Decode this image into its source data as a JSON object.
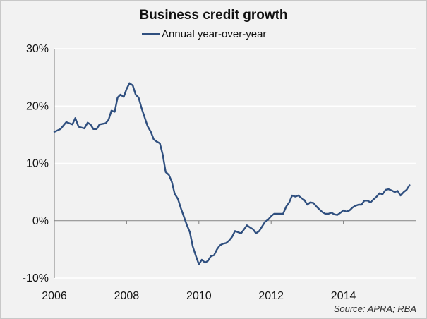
{
  "chart_data": {
    "type": "line",
    "title": "Business credit growth",
    "legend": [
      "Annual year-over-year"
    ],
    "y_tick_labels": [
      "30%",
      "20%",
      "10%",
      "0%",
      "-10%"
    ],
    "y_ticks": [
      30,
      20,
      10,
      0,
      -10
    ],
    "x_tick_labels": [
      "2006",
      "2008",
      "2010",
      "2012",
      "2014"
    ],
    "x_ticks": [
      2006,
      2008,
      2010,
      2012,
      2014
    ],
    "xlim": [
      2006,
      2016
    ],
    "ylim": [
      -10,
      30
    ],
    "grid": "horizontal",
    "series": [
      {
        "name": "Annual year-over-year",
        "color": "#2f4f7f",
        "points": [
          [
            2006.0,
            15.5
          ],
          [
            2006.17,
            16.0
          ],
          [
            2006.33,
            17.2
          ],
          [
            2006.5,
            16.8
          ],
          [
            2006.58,
            17.9
          ],
          [
            2006.67,
            16.4
          ],
          [
            2006.83,
            16.1
          ],
          [
            2006.92,
            17.1
          ],
          [
            2007.0,
            16.8
          ],
          [
            2007.08,
            16.0
          ],
          [
            2007.17,
            16.0
          ],
          [
            2007.25,
            16.8
          ],
          [
            2007.42,
            17.0
          ],
          [
            2007.5,
            17.6
          ],
          [
            2007.58,
            19.2
          ],
          [
            2007.67,
            19.0
          ],
          [
            2007.75,
            21.5
          ],
          [
            2007.83,
            22.0
          ],
          [
            2007.92,
            21.6
          ],
          [
            2008.0,
            23.0
          ],
          [
            2008.08,
            24.0
          ],
          [
            2008.17,
            23.6
          ],
          [
            2008.25,
            22.0
          ],
          [
            2008.33,
            21.5
          ],
          [
            2008.42,
            19.5
          ],
          [
            2008.5,
            18.0
          ],
          [
            2008.58,
            16.5
          ],
          [
            2008.67,
            15.5
          ],
          [
            2008.75,
            14.2
          ],
          [
            2008.83,
            13.8
          ],
          [
            2008.92,
            13.5
          ],
          [
            2009.0,
            11.5
          ],
          [
            2009.08,
            8.5
          ],
          [
            2009.17,
            8.0
          ],
          [
            2009.25,
            6.8
          ],
          [
            2009.33,
            4.7
          ],
          [
            2009.42,
            3.8
          ],
          [
            2009.5,
            2.2
          ],
          [
            2009.58,
            0.8
          ],
          [
            2009.67,
            -0.8
          ],
          [
            2009.75,
            -2.0
          ],
          [
            2009.83,
            -4.5
          ],
          [
            2009.92,
            -6.2
          ],
          [
            2010.0,
            -7.6
          ],
          [
            2010.08,
            -6.8
          ],
          [
            2010.17,
            -7.3
          ],
          [
            2010.25,
            -7.0
          ],
          [
            2010.33,
            -6.2
          ],
          [
            2010.42,
            -6.0
          ],
          [
            2010.5,
            -5.0
          ],
          [
            2010.58,
            -4.3
          ],
          [
            2010.67,
            -4.0
          ],
          [
            2010.75,
            -3.9
          ],
          [
            2010.83,
            -3.5
          ],
          [
            2010.92,
            -2.8
          ],
          [
            2011.0,
            -1.8
          ],
          [
            2011.08,
            -2.0
          ],
          [
            2011.17,
            -2.2
          ],
          [
            2011.25,
            -1.5
          ],
          [
            2011.33,
            -0.8
          ],
          [
            2011.42,
            -1.2
          ],
          [
            2011.5,
            -1.5
          ],
          [
            2011.58,
            -2.2
          ],
          [
            2011.67,
            -1.8
          ],
          [
            2011.75,
            -1.0
          ],
          [
            2011.83,
            -0.2
          ],
          [
            2011.92,
            0.2
          ],
          [
            2012.0,
            0.8
          ],
          [
            2012.08,
            1.2
          ],
          [
            2012.17,
            1.2
          ],
          [
            2012.25,
            1.2
          ],
          [
            2012.33,
            1.2
          ],
          [
            2012.42,
            2.5
          ],
          [
            2012.5,
            3.2
          ],
          [
            2012.58,
            4.4
          ],
          [
            2012.67,
            4.2
          ],
          [
            2012.75,
            4.4
          ],
          [
            2012.83,
            4.0
          ],
          [
            2012.92,
            3.6
          ],
          [
            2013.0,
            2.8
          ],
          [
            2013.08,
            3.2
          ],
          [
            2013.17,
            3.1
          ],
          [
            2013.25,
            2.5
          ],
          [
            2013.33,
            2.0
          ],
          [
            2013.42,
            1.5
          ],
          [
            2013.5,
            1.2
          ],
          [
            2013.58,
            1.2
          ],
          [
            2013.67,
            1.4
          ],
          [
            2013.75,
            1.1
          ],
          [
            2013.83,
            1.0
          ],
          [
            2013.92,
            1.4
          ],
          [
            2014.0,
            1.8
          ],
          [
            2014.08,
            1.6
          ],
          [
            2014.17,
            1.8
          ],
          [
            2014.25,
            2.3
          ],
          [
            2014.33,
            2.6
          ],
          [
            2014.42,
            2.8
          ],
          [
            2014.5,
            2.8
          ],
          [
            2014.58,
            3.5
          ],
          [
            2014.67,
            3.5
          ],
          [
            2014.75,
            3.2
          ],
          [
            2014.83,
            3.7
          ],
          [
            2014.92,
            4.2
          ],
          [
            2015.0,
            4.8
          ],
          [
            2015.08,
            4.6
          ],
          [
            2015.17,
            5.4
          ],
          [
            2015.25,
            5.5
          ],
          [
            2015.33,
            5.3
          ],
          [
            2015.42,
            5.0
          ],
          [
            2015.5,
            5.2
          ],
          [
            2015.58,
            4.4
          ],
          [
            2015.67,
            5.0
          ],
          [
            2015.75,
            5.4
          ],
          [
            2015.83,
            6.2
          ]
        ]
      }
    ]
  },
  "source_note": "Source: APRA; RBA"
}
